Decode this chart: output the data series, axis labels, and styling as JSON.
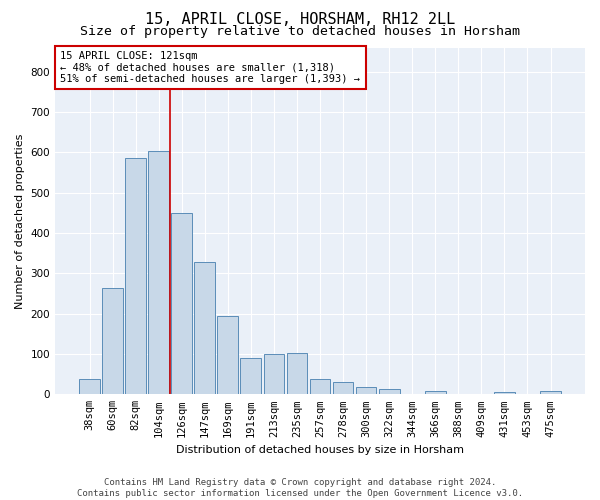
{
  "title": "15, APRIL CLOSE, HORSHAM, RH12 2LL",
  "subtitle": "Size of property relative to detached houses in Horsham",
  "xlabel": "Distribution of detached houses by size in Horsham",
  "ylabel": "Number of detached properties",
  "categories": [
    "38sqm",
    "60sqm",
    "82sqm",
    "104sqm",
    "126sqm",
    "147sqm",
    "169sqm",
    "191sqm",
    "213sqm",
    "235sqm",
    "257sqm",
    "278sqm",
    "300sqm",
    "322sqm",
    "344sqm",
    "366sqm",
    "388sqm",
    "409sqm",
    "431sqm",
    "453sqm",
    "475sqm"
  ],
  "values": [
    37,
    263,
    585,
    603,
    450,
    328,
    193,
    90,
    101,
    103,
    37,
    31,
    17,
    13,
    0,
    8,
    0,
    0,
    5,
    0,
    7
  ],
  "bar_color": "#c8d8e8",
  "bar_edge_color": "#5b8db8",
  "background_color": "#eaf0f8",
  "grid_color": "#ffffff",
  "annotation_box_text": "15 APRIL CLOSE: 121sqm\n← 48% of detached houses are smaller (1,318)\n51% of semi-detached houses are larger (1,393) →",
  "annotation_box_color": "#ffffff",
  "annotation_box_edge_color": "#cc0000",
  "annotation_line_color": "#cc0000",
  "footer_text": "Contains HM Land Registry data © Crown copyright and database right 2024.\nContains public sector information licensed under the Open Government Licence v3.0.",
  "ylim": [
    0,
    860
  ],
  "yticks": [
    0,
    100,
    200,
    300,
    400,
    500,
    600,
    700,
    800
  ],
  "title_fontsize": 11,
  "subtitle_fontsize": 9.5,
  "axis_label_fontsize": 8,
  "tick_fontsize": 7.5,
  "footer_fontsize": 6.5,
  "annotation_fontsize": 7.5
}
